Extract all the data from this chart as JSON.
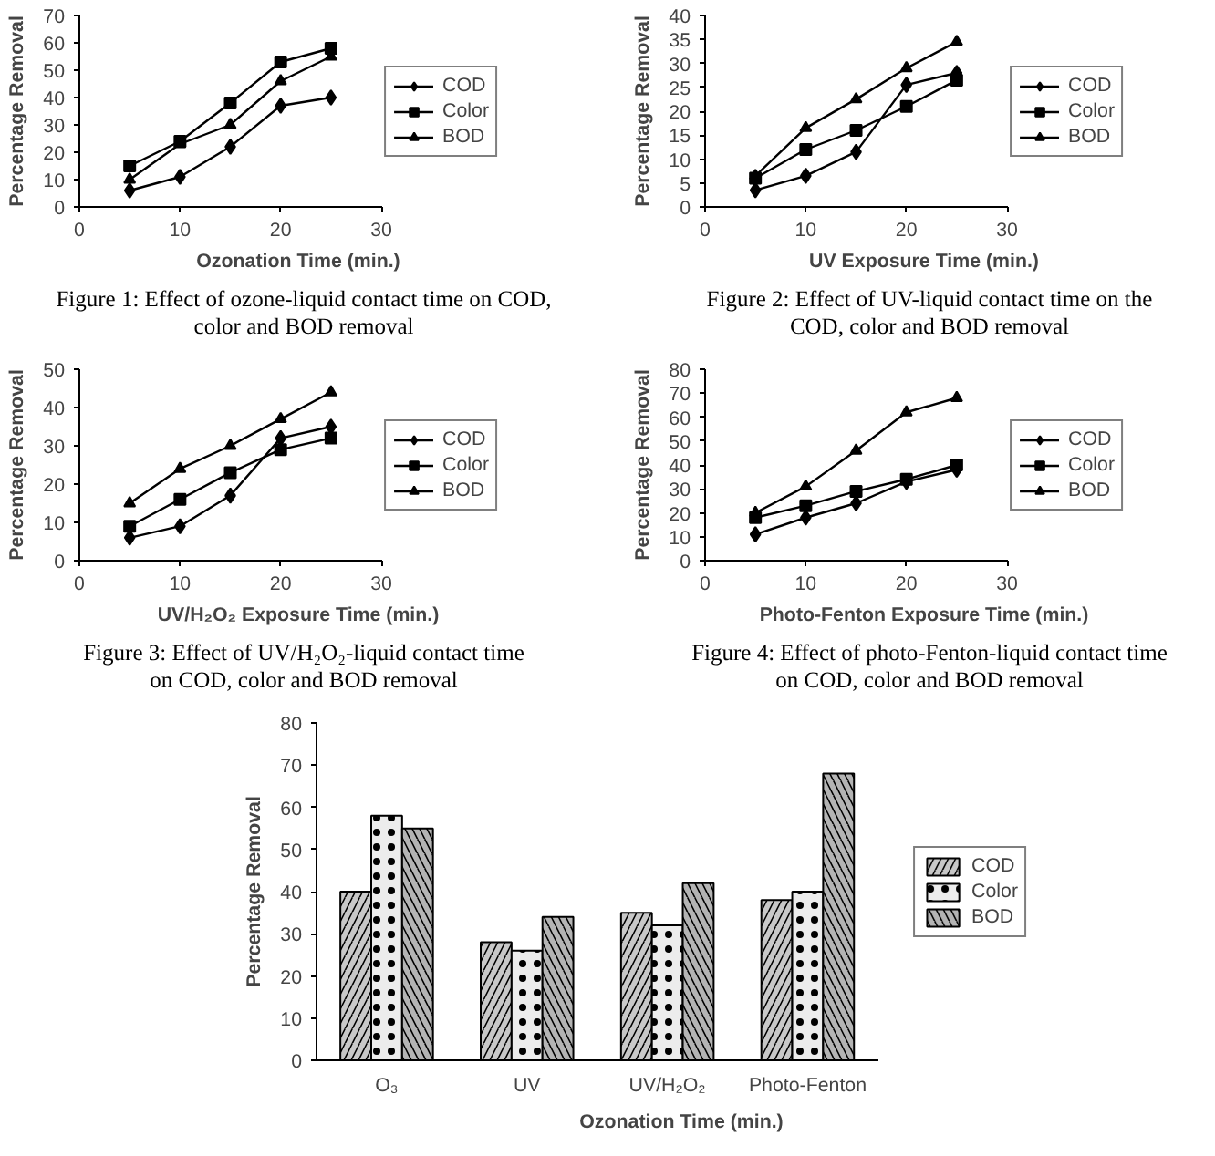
{
  "chart_data": [
    {
      "type": "line",
      "xlabel": "Ozonation Time (min.)",
      "ylabel": "Percentage Removal",
      "x": [
        5,
        10,
        15,
        20,
        25
      ],
      "xlim": [
        0,
        30
      ],
      "xticks": [
        0,
        10,
        20,
        30
      ],
      "ylim": [
        0,
        70
      ],
      "yticks": [
        0,
        10,
        20,
        30,
        40,
        50,
        60,
        70
      ],
      "grid": false,
      "legend": "right",
      "series": [
        {
          "name": "COD",
          "color": "#000000",
          "marker": "diamond",
          "values": [
            6,
            11,
            22,
            37,
            40
          ]
        },
        {
          "name": "Color",
          "color": "#000000",
          "marker": "square",
          "values": [
            15,
            24,
            38,
            53,
            58
          ]
        },
        {
          "name": "BOD",
          "color": "#000000",
          "marker": "triangle",
          "values": [
            10,
            23,
            30,
            46,
            55
          ]
        }
      ],
      "annotations": [
        "Figure 1: Effect of ozone-liquid contact time on COD,",
        "color and BOD removal"
      ]
    },
    {
      "type": "line",
      "xlabel": "UV Exposure Time (min.)",
      "ylabel": "Percentage Removal",
      "x": [
        5,
        10,
        15,
        20,
        25
      ],
      "xlim": [
        0,
        30
      ],
      "xticks": [
        0,
        10,
        20,
        30
      ],
      "ylim": [
        0,
        40
      ],
      "yticks": [
        0,
        5,
        10,
        15,
        20,
        25,
        30,
        35,
        40
      ],
      "grid": false,
      "legend": "right",
      "series": [
        {
          "name": "COD",
          "color": "#000000",
          "marker": "diamond",
          "values": [
            3.5,
            6.5,
            11.5,
            25.5,
            28
          ]
        },
        {
          "name": "Color",
          "color": "#000000",
          "marker": "square",
          "values": [
            6,
            12,
            16,
            21,
            26.5
          ]
        },
        {
          "name": "BOD",
          "color": "#000000",
          "marker": "triangle",
          "values": [
            6.5,
            16.5,
            22.5,
            29,
            34.5
          ]
        }
      ],
      "annotations": [
        "Figure 2: Effect of UV-liquid contact time on the",
        "COD, color and BOD removal"
      ]
    },
    {
      "type": "line",
      "xlabel": "UV/H₂O₂ Exposure Time (min.)",
      "ylabel": "Percentage Removal",
      "x": [
        5,
        10,
        15,
        20,
        25
      ],
      "xlim": [
        0,
        30
      ],
      "xticks": [
        0,
        10,
        20,
        30
      ],
      "ylim": [
        0,
        50
      ],
      "yticks": [
        0,
        10,
        20,
        30,
        40,
        50
      ],
      "grid": false,
      "legend": "right",
      "series": [
        {
          "name": "COD",
          "color": "#000000",
          "marker": "diamond",
          "values": [
            6,
            9,
            17,
            32,
            35
          ]
        },
        {
          "name": "Color",
          "color": "#000000",
          "marker": "square",
          "values": [
            9,
            16,
            23,
            29,
            32
          ]
        },
        {
          "name": "BOD",
          "color": "#000000",
          "marker": "triangle",
          "values": [
            15,
            24,
            30,
            37,
            44
          ]
        }
      ],
      "annotations": [
        "Figure 3: Effect of UV/H₂O₂-liquid contact time",
        "on COD, color and BOD removal"
      ]
    },
    {
      "type": "line",
      "xlabel": "Photo-Fenton Exposure Time (min.)",
      "ylabel": "Percentage Removal",
      "x": [
        5,
        10,
        15,
        20,
        25
      ],
      "xlim": [
        0,
        30
      ],
      "xticks": [
        0,
        10,
        20,
        30
      ],
      "ylim": [
        0,
        80
      ],
      "yticks": [
        0,
        10,
        20,
        30,
        40,
        50,
        60,
        70,
        80
      ],
      "grid": false,
      "legend": "right",
      "series": [
        {
          "name": "COD",
          "color": "#000000",
          "marker": "diamond",
          "values": [
            11,
            18,
            24,
            33,
            38
          ]
        },
        {
          "name": "Color",
          "color": "#000000",
          "marker": "square",
          "values": [
            18,
            23,
            29,
            34,
            40
          ]
        },
        {
          "name": "BOD",
          "color": "#000000",
          "marker": "triangle",
          "values": [
            20,
            31,
            46,
            62,
            68
          ]
        }
      ],
      "annotations": [
        "Figure 4: Effect of photo-Fenton-liquid contact time",
        "on COD, color and BOD removal"
      ]
    },
    {
      "type": "bar",
      "xlabel": "Ozonation Time (min.)",
      "ylabel": "Percentage Removal",
      "categories": [
        "O₃",
        "UV",
        "UV/H₂O₂",
        "Photo-Fenton"
      ],
      "ylim": [
        0,
        80
      ],
      "yticks": [
        0,
        10,
        20,
        30,
        40,
        50,
        60,
        70,
        80
      ],
      "grid": false,
      "legend": "right",
      "series": [
        {
          "name": "COD",
          "color": "#c8c8c8",
          "values": [
            40,
            28,
            35,
            38
          ]
        },
        {
          "name": "Color",
          "color": "#ececec",
          "values": [
            58,
            26,
            32,
            40
          ]
        },
        {
          "name": "BOD",
          "color": "#b4b4b4",
          "values": [
            55,
            34,
            42,
            68
          ]
        }
      ]
    }
  ]
}
